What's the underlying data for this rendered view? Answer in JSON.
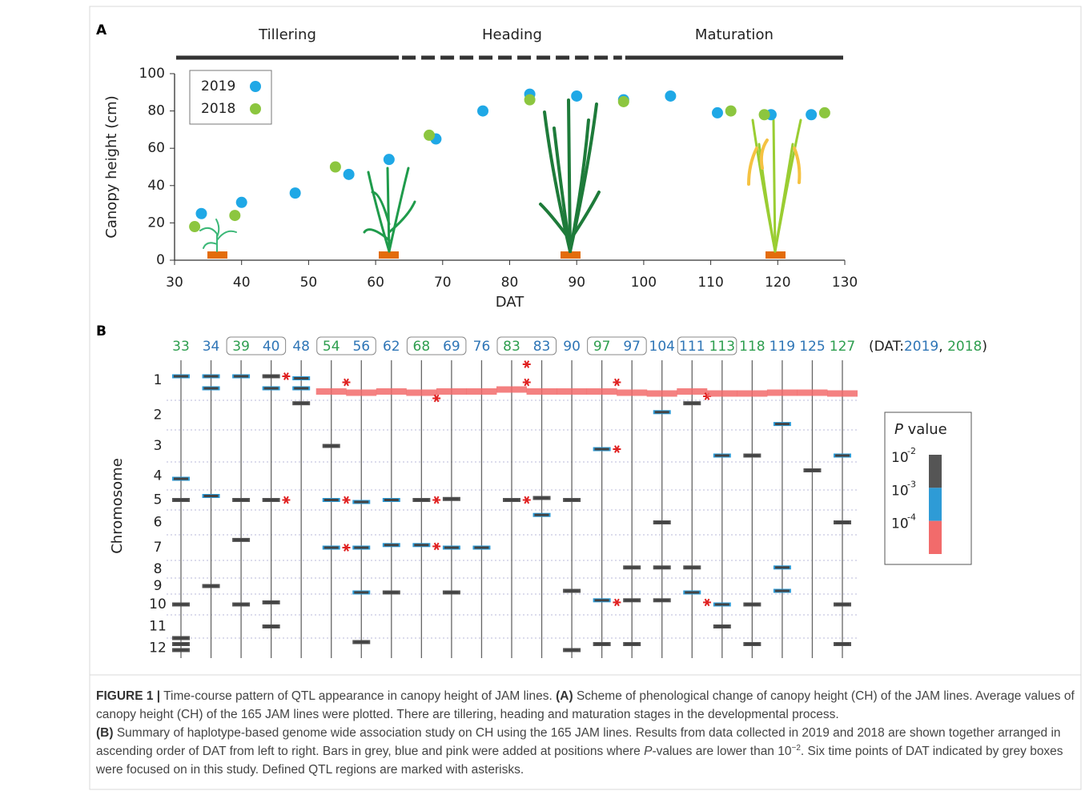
{
  "chart_data": {
    "type": "scatter",
    "panel_label": "A",
    "x_label": "DAT",
    "y_label": "Canopy height (cm)",
    "xlim": [
      30,
      130
    ],
    "xticks": [
      30,
      40,
      50,
      60,
      70,
      80,
      90,
      100,
      110,
      120,
      130
    ],
    "ylim": [
      0,
      100
    ],
    "yticks": [
      0,
      20,
      40,
      60,
      80,
      100
    ],
    "legend": "upper left",
    "phases": [
      {
        "label": "Tillering",
        "start": 30,
        "end": 63.7,
        "style": "solid"
      },
      {
        "label": "Heading",
        "start": 63.7,
        "end": 97,
        "style": "dashed"
      },
      {
        "label": "Maturation",
        "start": 97,
        "end": 130,
        "style": "solid"
      }
    ],
    "series": [
      {
        "name": "2019",
        "color": "#1fa8e6",
        "x": [
          34,
          40,
          48,
          56,
          62,
          69,
          76,
          83,
          90,
          97,
          104,
          111,
          119,
          125
        ],
        "values": [
          25,
          31,
          36,
          46,
          54,
          65,
          80,
          89,
          88,
          86,
          88,
          79,
          78,
          78
        ]
      },
      {
        "name": "2018",
        "color": "#8cc63f",
        "x": [
          33,
          39,
          54,
          68,
          83,
          97,
          113,
          118,
          127
        ],
        "values": [
          18,
          24,
          50,
          67,
          86,
          85,
          80,
          78,
          79
        ]
      }
    ]
  },
  "genome_panel": {
    "panel_label": "B",
    "axis_label": "Chromosome",
    "chromosomes": [
      "1",
      "2",
      "3",
      "4",
      "5",
      "6",
      "7",
      "8",
      "9",
      "10",
      "11",
      "12"
    ],
    "year_legend": [
      "(DAT:",
      "2019",
      ", ",
      "2018",
      ")"
    ],
    "year_colors": [
      "#2e75b6",
      "#2e9e4f"
    ],
    "legend_title": "P value",
    "legend_title_italic": "P",
    "legend_ticks": [
      {
        "base": "10",
        "exponent": -2
      },
      {
        "base": "10",
        "exponent": -3
      },
      {
        "base": "10",
        "exponent": -4
      }
    ],
    "legend_lim": [
      -2,
      -5
    ],
    "level_colors": [
      "#555555",
      "#2e9bd6",
      "#f26b6b"
    ],
    "columns": [
      {
        "dat": "33",
        "color": "#2e9e4f",
        "focus": false,
        "bars": [
          [
            1,
            0.4,
            -3.2
          ],
          [
            4,
            0.6,
            -3.2
          ],
          [
            5,
            0.5,
            -2.5
          ],
          [
            10,
            0.5,
            -2.3
          ],
          [
            12,
            0.0,
            -2.5
          ],
          [
            12,
            0.3,
            -2.5
          ],
          [
            12,
            0.6,
            -2.3
          ]
        ],
        "qtl": []
      },
      {
        "dat": "34",
        "color": "#2e75b6",
        "focus": false,
        "bars": [
          [
            1,
            0.4,
            -3.3
          ],
          [
            1,
            0.7,
            -3.3
          ],
          [
            5,
            0.3,
            -3.2
          ],
          [
            9,
            0.5,
            -2.2
          ]
        ],
        "qtl": []
      },
      {
        "dat": "39",
        "color": "#2e9e4f",
        "focus": true,
        "bars": [
          [
            1,
            0.4,
            -3.3
          ],
          [
            5,
            0.5,
            -2.4
          ],
          [
            7,
            0.2,
            -2.2
          ],
          [
            10,
            0.5,
            -2.3
          ]
        ],
        "qtl": []
      },
      {
        "dat": "40",
        "color": "#2e75b6",
        "focus": true,
        "bars": [
          [
            1,
            0.4,
            -2.6
          ],
          [
            1,
            0.7,
            -3.2
          ],
          [
            5,
            0.5,
            -2.6
          ],
          [
            10,
            0.4,
            -2.5
          ],
          [
            11,
            0.5,
            -2.4
          ]
        ],
        "qtl": [
          [
            1,
            0.4
          ],
          [
            5,
            0.5
          ]
        ]
      },
      {
        "dat": "48",
        "color": "#2e75b6",
        "focus": false,
        "bars": [
          [
            1,
            0.45,
            -3.3
          ],
          [
            1,
            0.7,
            -3.3
          ],
          [
            2,
            0.1,
            -2.3
          ]
        ],
        "qtl": []
      },
      {
        "dat": "54",
        "color": "#2e9e4f",
        "focus": true,
        "bars": [
          [
            1,
            0.75,
            -4.2
          ],
          [
            3,
            0.5,
            -2.5
          ],
          [
            5,
            0.5,
            -3.2
          ],
          [
            7,
            0.5,
            -3.5
          ]
        ],
        "qtl": [
          [
            1,
            0.55
          ],
          [
            5,
            0.5
          ],
          [
            7,
            0.5
          ]
        ]
      },
      {
        "dat": "56",
        "color": "#2e75b6",
        "focus": true,
        "bars": [
          [
            1,
            0.78,
            -4.3
          ],
          [
            5,
            0.6,
            -3.2
          ],
          [
            7,
            0.5,
            -3.5
          ],
          [
            9,
            0.9,
            -3.3
          ],
          [
            12,
            0.2,
            -2.3
          ]
        ],
        "qtl": []
      },
      {
        "dat": "62",
        "color": "#2e75b6",
        "focus": false,
        "bars": [
          [
            1,
            0.75,
            -4.3
          ],
          [
            5,
            0.5,
            -3.1
          ],
          [
            7,
            0.4,
            -3.2
          ],
          [
            9,
            0.9,
            -2.5
          ]
        ],
        "qtl": []
      },
      {
        "dat": "68",
        "color": "#2e9e4f",
        "focus": true,
        "bars": [
          [
            1,
            0.78,
            -4.4
          ],
          [
            5,
            0.5,
            -2.5
          ],
          [
            7,
            0.4,
            -3.6
          ]
        ],
        "qtl": [
          [
            1,
            0.95
          ],
          [
            5,
            0.5
          ],
          [
            7,
            0.45
          ]
        ]
      },
      {
        "dat": "69",
        "color": "#2e75b6",
        "focus": true,
        "bars": [
          [
            1,
            0.75,
            -4.4
          ],
          [
            5,
            0.45,
            -2.7
          ],
          [
            7,
            0.5,
            -3.3
          ],
          [
            9,
            0.9,
            -2.5
          ]
        ],
        "qtl": []
      },
      {
        "dat": "76",
        "color": "#2e75b6",
        "focus": false,
        "bars": [
          [
            1,
            0.75,
            -4.3
          ],
          [
            7,
            0.5,
            -3.4
          ]
        ],
        "qtl": []
      },
      {
        "dat": "83",
        "color": "#2e9e4f",
        "focus": true,
        "bars": [
          [
            1,
            0.7,
            -4.5
          ],
          [
            5,
            0.5,
            -2.5
          ]
        ],
        "qtl": [
          [
            1,
            0.1
          ],
          [
            1,
            0.55
          ],
          [
            5,
            0.5
          ]
        ]
      },
      {
        "dat": "83",
        "color": "#2e75b6",
        "focus": true,
        "bars": [
          [
            1,
            0.75,
            -4.5
          ],
          [
            5,
            0.4,
            -2.5
          ],
          [
            6,
            0.2,
            -3.2
          ]
        ],
        "qtl": []
      },
      {
        "dat": "90",
        "color": "#2e75b6",
        "focus": false,
        "bars": [
          [
            1,
            0.75,
            -4.4
          ],
          [
            5,
            0.5,
            -2.4
          ],
          [
            9,
            0.8,
            -2.5
          ],
          [
            12,
            0.6,
            -2.3
          ]
        ],
        "qtl": []
      },
      {
        "dat": "97",
        "color": "#2e9e4f",
        "focus": true,
        "bars": [
          [
            1,
            0.75,
            -4.5
          ],
          [
            3,
            0.6,
            -3.3
          ],
          [
            10,
            0.3,
            -3.2
          ],
          [
            12,
            0.3,
            -2.8
          ]
        ],
        "qtl": [
          [
            1,
            0.55
          ],
          [
            3,
            0.6
          ],
          [
            10,
            0.4
          ]
        ]
      },
      {
        "dat": "97",
        "color": "#2e75b6",
        "focus": true,
        "bars": [
          [
            1,
            0.78,
            -4.5
          ],
          [
            8,
            0.4,
            -2.6
          ],
          [
            10,
            0.3,
            -2.6
          ],
          [
            12,
            0.3,
            -2.6
          ]
        ],
        "qtl": []
      },
      {
        "dat": "104",
        "color": "#2e75b6",
        "focus": false,
        "bars": [
          [
            1,
            0.8,
            -4.3
          ],
          [
            2,
            0.4,
            -3.2
          ],
          [
            6,
            0.5,
            -2.8
          ],
          [
            8,
            0.4,
            -2.7
          ],
          [
            10,
            0.3,
            -2.5
          ]
        ],
        "qtl": []
      },
      {
        "dat": "111",
        "color": "#2e75b6",
        "focus": true,
        "bars": [
          [
            1,
            0.75,
            -4.4
          ],
          [
            2,
            0.1,
            -2.8
          ],
          [
            8,
            0.4,
            -2.6
          ],
          [
            9,
            0.9,
            -3.5
          ]
        ],
        "qtl": [
          [
            1,
            0.9
          ],
          [
            10,
            0.4
          ]
        ]
      },
      {
        "dat": "113",
        "color": "#2e9e4f",
        "focus": true,
        "bars": [
          [
            1,
            0.8,
            -4.3
          ],
          [
            3,
            0.8,
            -3.2
          ],
          [
            10,
            0.5,
            -3.4
          ],
          [
            11,
            0.5,
            -2.6
          ]
        ],
        "qtl": []
      },
      {
        "dat": "118",
        "color": "#2e9e4f",
        "focus": false,
        "bars": [
          [
            1,
            0.8,
            -4.3
          ],
          [
            3,
            0.8,
            -2.6
          ],
          [
            10,
            0.5,
            -2.6
          ],
          [
            12,
            0.3,
            -2.6
          ]
        ],
        "qtl": []
      },
      {
        "dat": "119",
        "color": "#2e75b6",
        "focus": false,
        "bars": [
          [
            1,
            0.78,
            -4.3
          ],
          [
            2,
            0.8,
            -3.2
          ],
          [
            8,
            0.4,
            -3.3
          ],
          [
            9,
            0.8,
            -3.2
          ]
        ],
        "qtl": []
      },
      {
        "dat": "125",
        "color": "#2e75b6",
        "focus": false,
        "bars": [
          [
            1,
            0.78,
            -4.3
          ],
          [
            4,
            0.3,
            -2.5
          ]
        ],
        "qtl": []
      },
      {
        "dat": "127",
        "color": "#2e9e4f",
        "focus": false,
        "bars": [
          [
            1,
            0.8,
            -4.3
          ],
          [
            3,
            0.8,
            -3.2
          ],
          [
            6,
            0.5,
            -2.7
          ],
          [
            10,
            0.5,
            -2.7
          ],
          [
            12,
            0.3,
            -2.6
          ]
        ],
        "qtl": []
      }
    ]
  },
  "caption": {
    "paragraphs": [
      [
        {
          "text": "FIGURE 1 |",
          "style": "bold"
        },
        {
          "text": " Time-course pattern of QTL appearance in canopy height of JAM lines. ",
          "style": "normal"
        },
        {
          "text": "(A)",
          "style": "bold"
        },
        {
          "text": " Scheme of phenological change of canopy height (CH) of the JAM lines. Average values of canopy height (CH) of the 165 JAM lines were plotted. There are tillering, heading and maturation stages in the developmental process.",
          "style": "normal"
        }
      ],
      [
        {
          "text": "(B)",
          "style": "bold"
        },
        {
          "text": " Summary of haplotype-based genome wide association study on CH using the 165 JAM lines. Results from data collected in 2019 and 2018 are shown together arranged in ascending order of DAT from left to right. Bars in grey, blue and pink were added at positions where ",
          "style": "normal"
        },
        {
          "text": "P",
          "style": "italic"
        },
        {
          "text": "-values are lower than 10",
          "style": "normal"
        },
        {
          "text": "−2",
          "style": "sup"
        },
        {
          "text": ". Six time points of DAT indicated by grey boxes were focused on in this study. Defined QTL regions are marked with asterisks.",
          "style": "normal"
        }
      ]
    ]
  }
}
